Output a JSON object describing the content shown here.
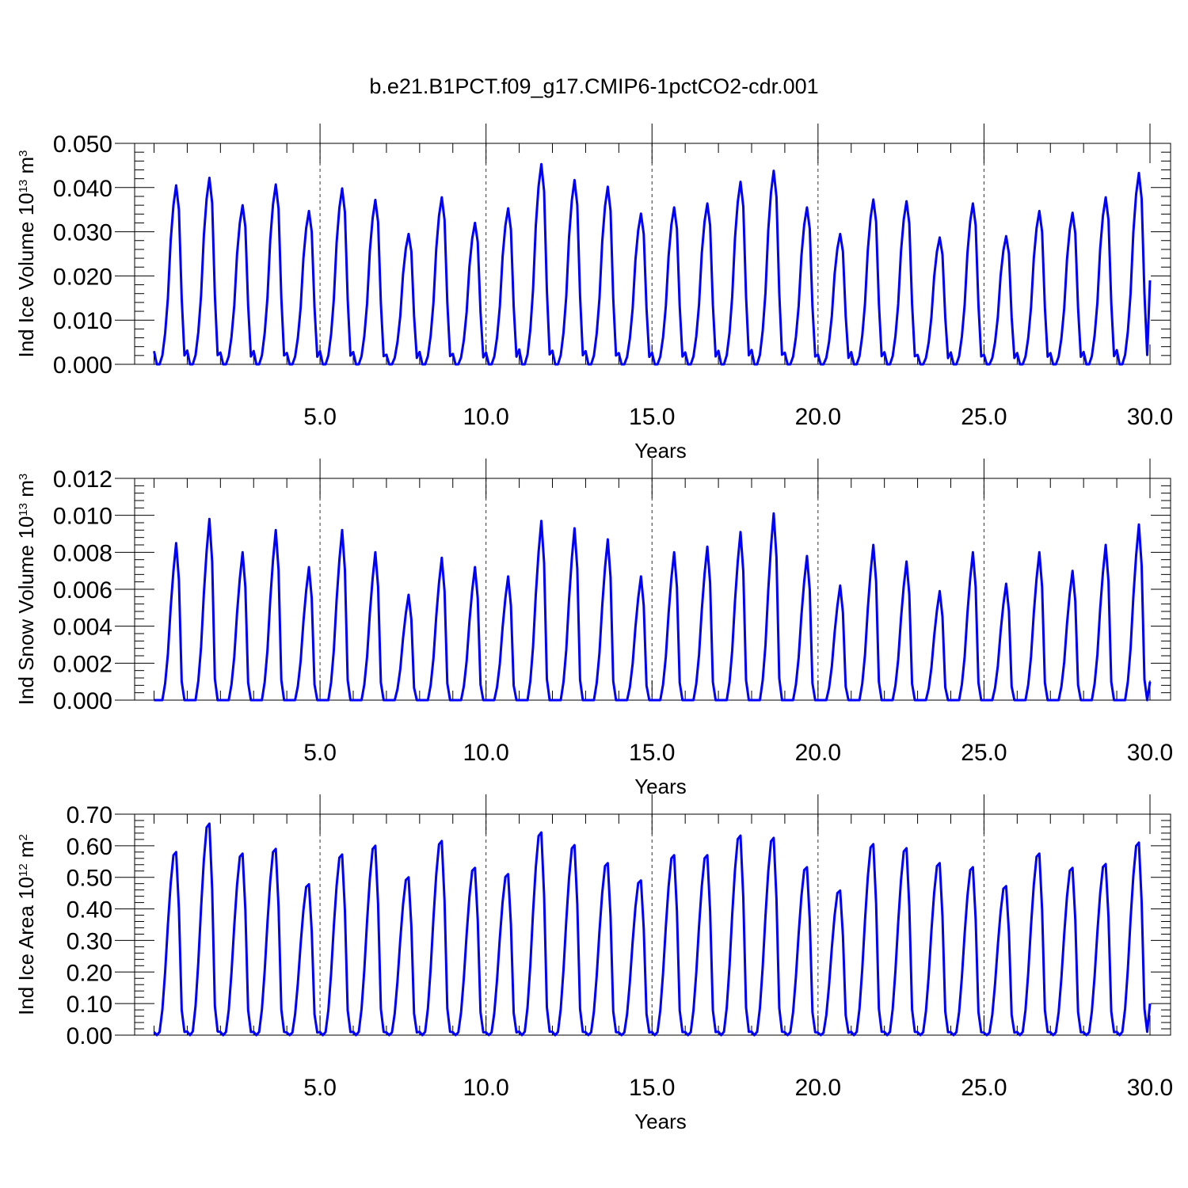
{
  "figure": {
    "title": "b.e21.B1PCT.f09_g17.CMIP6-1pctCO2-cdr.001"
  },
  "chart_data": [
    {
      "type": "line",
      "title": "b.e21.B1PCT.f09_g17.CMIP6-1pctCO2-cdr.001",
      "xlabel": "Years",
      "ylabel": {
        "prefix": "Ind Ice Volume 10",
        "exponent": "13",
        "unit": " m",
        "unit_exponent": "3"
      },
      "xlim": [
        0.0,
        30.0
      ],
      "ylim": [
        0.0,
        0.05
      ],
      "x_ticks": [
        "5.0",
        "10.0",
        "15.0",
        "20.0",
        "25.0",
        "30.0"
      ],
      "y_ticks": [
        "0.000",
        "0.010",
        "0.020",
        "0.030",
        "0.040",
        "0.050"
      ],
      "vertical_dashed_gridlines_at_years": [
        5,
        10,
        15,
        20,
        25
      ],
      "series_color": "#0000ff",
      "series": [
        {
          "monthly_shape": [
            0.003,
            0.0,
            0.0,
            0.002,
            0.007,
            0.015,
            0.028,
            0.036,
            0.0405,
            0.035,
            0.015,
            0.002
          ],
          "annual_peak": [
            0.0405,
            0.0422,
            0.036,
            0.0407,
            0.0347,
            0.0398,
            0.0372,
            0.0295,
            0.0378,
            0.032,
            0.0353,
            0.0453,
            0.0417,
            0.0402,
            0.0341,
            0.0355,
            0.0364,
            0.0413,
            0.0438,
            0.0355,
            0.0295,
            0.0373,
            0.0369,
            0.0287,
            0.0364,
            0.029,
            0.0347,
            0.0343,
            0.0378,
            0.0433
          ],
          "final_value": 0.019
        }
      ]
    },
    {
      "type": "line",
      "xlabel": "Years",
      "ylabel": {
        "prefix": "Ind Snow Volume 10",
        "exponent": "13",
        "unit": " m",
        "unit_exponent": "3"
      },
      "xlim": [
        0.0,
        30.0
      ],
      "ylim": [
        0.0,
        0.012
      ],
      "x_ticks": [
        "5.0",
        "10.0",
        "15.0",
        "20.0",
        "25.0",
        "30.0"
      ],
      "y_ticks": [
        "0.000",
        "0.002",
        "0.004",
        "0.006",
        "0.008",
        "0.010",
        "0.012"
      ],
      "vertical_dashed_gridlines_at_years": [
        5,
        10,
        15,
        20,
        25
      ],
      "series_color": "#0000ff",
      "series": [
        {
          "monthly_shape": [
            0.0,
            0.0,
            0.0,
            0.0,
            0.0009,
            0.0025,
            0.005,
            0.007,
            0.0085,
            0.0065,
            0.001,
            0.0
          ],
          "annual_peak": [
            0.0085,
            0.0098,
            0.008,
            0.0092,
            0.0072,
            0.0092,
            0.008,
            0.0057,
            0.0077,
            0.0072,
            0.0067,
            0.0097,
            0.0093,
            0.0087,
            0.0067,
            0.008,
            0.0083,
            0.0091,
            0.0101,
            0.0078,
            0.0062,
            0.0084,
            0.0075,
            0.0059,
            0.008,
            0.0063,
            0.008,
            0.007,
            0.0084,
            0.0095
          ],
          "final_value": 0.001
        }
      ]
    },
    {
      "type": "line",
      "xlabel": "Years",
      "ylabel": {
        "prefix": "Ind Ice Area 10",
        "exponent": "12",
        "unit": " m",
        "unit_exponent": "2"
      },
      "xlim": [
        0.0,
        30.0
      ],
      "ylim": [
        0.0,
        0.7
      ],
      "x_ticks": [
        "5.0",
        "10.0",
        "15.0",
        "20.0",
        "25.0",
        "30.0"
      ],
      "y_ticks": [
        "0.00",
        "0.10",
        "0.20",
        "0.30",
        "0.40",
        "0.50",
        "0.60",
        "0.70"
      ],
      "vertical_dashed_gridlines_at_years": [
        5,
        10,
        15,
        20,
        25
      ],
      "series_color": "#0000ff",
      "series": [
        {
          "monthly_shape": [
            0.01,
            0.0,
            0.01,
            0.08,
            0.2,
            0.35,
            0.48,
            0.57,
            0.58,
            0.4,
            0.08,
            0.01
          ],
          "annual_peak": [
            0.58,
            0.67,
            0.575,
            0.59,
            0.478,
            0.572,
            0.6,
            0.5,
            0.615,
            0.53,
            0.51,
            0.642,
            0.602,
            0.545,
            0.49,
            0.57,
            0.57,
            0.632,
            0.625,
            0.532,
            0.458,
            0.605,
            0.592,
            0.545,
            0.532,
            0.472,
            0.575,
            0.53,
            0.542,
            0.61
          ],
          "final_value": 0.1
        }
      ]
    }
  ]
}
